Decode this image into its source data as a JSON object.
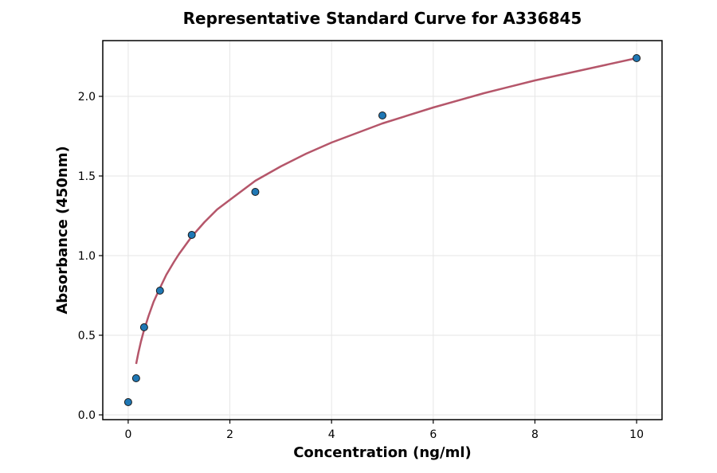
{
  "chart_data": {
    "type": "scatter",
    "title": "Representative Standard Curve for A336845",
    "xlabel": "Concentration (ng/ml)",
    "ylabel": "Absorbance (450nm)",
    "xlim": [
      -0.5,
      10.5
    ],
    "ylim": [
      -0.03,
      2.35
    ],
    "xticks": [
      0,
      2,
      4,
      6,
      8,
      10
    ],
    "yticks": [
      0.0,
      0.5,
      1.0,
      1.5,
      2.0
    ],
    "xtick_labels": [
      "0",
      "2",
      "4",
      "6",
      "8",
      "10"
    ],
    "ytick_labels": [
      "0.0",
      "0.5",
      "1.0",
      "1.5",
      "2.0"
    ],
    "grid": true,
    "series": [
      {
        "kind": "points",
        "x": [
          0,
          0.156,
          0.313,
          0.625,
          1.25,
          2.5,
          5,
          10
        ],
        "y": [
          0.08,
          0.23,
          0.55,
          0.78,
          1.13,
          1.4,
          1.88,
          2.24
        ],
        "color": "#1f77b4"
      },
      {
        "kind": "fit-curve",
        "x": [
          0.156,
          0.2,
          0.25,
          0.3,
          0.4,
          0.5,
          0.6,
          0.75,
          0.9,
          1.0,
          1.25,
          1.5,
          1.75,
          2.0,
          2.5,
          3.0,
          3.5,
          4.0,
          4.5,
          5.0,
          6.0,
          7.0,
          8.0,
          9.0,
          10.0
        ],
        "y": [
          0.32,
          0.39,
          0.46,
          0.52,
          0.62,
          0.71,
          0.78,
          0.88,
          0.96,
          1.01,
          1.12,
          1.21,
          1.29,
          1.35,
          1.47,
          1.56,
          1.64,
          1.71,
          1.77,
          1.83,
          1.93,
          2.02,
          2.1,
          2.17,
          2.24
        ],
        "color": "#b5566a"
      }
    ]
  }
}
